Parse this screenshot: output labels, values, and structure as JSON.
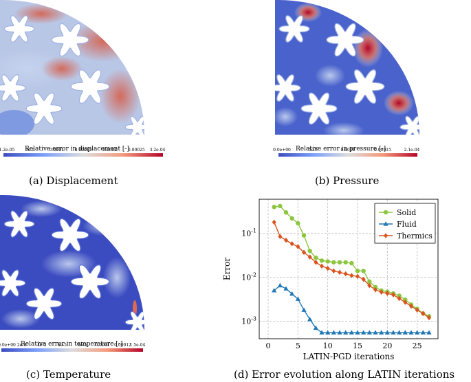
{
  "figure": {
    "panels": [
      {
        "id": "a",
        "caption": "(a) Displacement",
        "colorbar_title": "Relative error in displacement [-]",
        "ticks": [
          "1.2e-05",
          "5e-5",
          "0.0001",
          "0.00015",
          "0.0002",
          "0.00025",
          "3.2e-04"
        ]
      },
      {
        "id": "b",
        "caption": "(b) Pressure",
        "colorbar_title": "Relative error in pressure [-]",
        "ticks": [
          "0.0e+00",
          "5e-5",
          "0.0001",
          "0.00015",
          "2.1e-04"
        ]
      },
      {
        "id": "c",
        "caption": "(c) Temperature",
        "colorbar_title": "Relative error in temperature [-]",
        "ticks": [
          "0.0e+00",
          "2e-5",
          "4e-5",
          "6e-5",
          "8e-5",
          "0.0001",
          "0.00012",
          "1.5e-04"
        ]
      },
      {
        "id": "d",
        "caption": "(d) Error evolution along LATIN iterations"
      }
    ],
    "colors": {
      "cmap_low": "#3b4cc0",
      "cmap_mid": "#dddddd",
      "cmap_high": "#b40426",
      "solid": "#8cc63f",
      "fluid": "#1f77b4",
      "thermics": "#d9531e"
    }
  },
  "chart_data": {
    "type": "line",
    "xlabel": "LATIN-PGD iterations",
    "ylabel": "Error",
    "xlim": [
      -1.5,
      28.5
    ],
    "ylim": [
      0.0004,
      0.6
    ],
    "yscale": "log",
    "xticks": [
      0,
      5,
      10,
      15,
      20,
      25
    ],
    "yticks": [
      {
        "v": 0.001,
        "label": "10^-3"
      },
      {
        "v": 0.01,
        "label": "10^-2"
      },
      {
        "v": 0.1,
        "label": "10^-1"
      }
    ],
    "grid": true,
    "legend": "top-right",
    "series": [
      {
        "name": "Solid",
        "color": "#8cc63f",
        "marker": "circle",
        "x": [
          1,
          2,
          3,
          4,
          5,
          6,
          7,
          8,
          9,
          10,
          11,
          12,
          13,
          14,
          15,
          16,
          17,
          18,
          19,
          20,
          21,
          22,
          23,
          24,
          25,
          26,
          27
        ],
        "y": [
          0.4,
          0.42,
          0.3,
          0.22,
          0.17,
          0.09,
          0.04,
          0.028,
          0.024,
          0.023,
          0.022,
          0.022,
          0.022,
          0.021,
          0.014,
          0.014,
          0.008,
          0.006,
          0.005,
          0.0047,
          0.0043,
          0.0038,
          0.0031,
          0.0024,
          0.0019,
          0.0015,
          0.0013
        ]
      },
      {
        "name": "Fluid",
        "color": "#1f77b4",
        "marker": "triangle",
        "x": [
          1,
          2,
          3,
          4,
          5,
          6,
          7,
          8,
          9,
          10,
          11,
          12,
          13,
          14,
          15,
          16,
          17,
          18,
          19,
          20,
          21,
          22,
          23,
          24,
          25,
          26,
          27
        ],
        "y": [
          0.005,
          0.0065,
          0.0055,
          0.0042,
          0.0032,
          0.0018,
          0.0011,
          0.0007,
          0.00055,
          0.00055,
          0.00055,
          0.00055,
          0.00055,
          0.00055,
          0.00055,
          0.00055,
          0.00055,
          0.00055,
          0.00055,
          0.00055,
          0.00055,
          0.00055,
          0.00055,
          0.00055,
          0.00055,
          0.00055,
          0.00055
        ]
      },
      {
        "name": "Thermics",
        "color": "#d9531e",
        "marker": "diamond",
        "x": [
          1,
          2,
          3,
          4,
          5,
          6,
          7,
          8,
          9,
          10,
          11,
          12,
          13,
          14,
          15,
          16,
          17,
          18,
          19,
          20,
          21,
          22,
          23,
          24,
          25,
          26,
          27
        ],
        "y": [
          0.18,
          0.085,
          0.07,
          0.058,
          0.05,
          0.037,
          0.029,
          0.022,
          0.018,
          0.016,
          0.014,
          0.013,
          0.012,
          0.011,
          0.0105,
          0.009,
          0.0065,
          0.0052,
          0.0046,
          0.0043,
          0.004,
          0.0033,
          0.0027,
          0.0022,
          0.0018,
          0.0015,
          0.0012
        ]
      }
    ]
  }
}
